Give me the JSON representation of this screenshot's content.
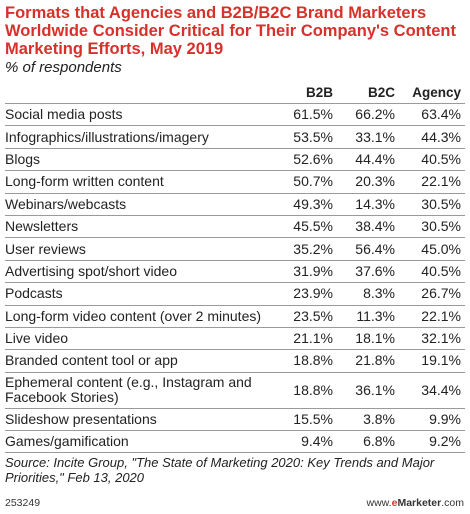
{
  "header": {
    "title": "Formats that Agencies and B2B/B2C Brand Marketers Worldwide Consider Critical for Their Company's Content Marketing Efforts, May 2019",
    "subtitle": "% of respondents"
  },
  "chart_data": {
    "type": "table",
    "title": "Formats that Agencies and B2B/B2C Brand Marketers Worldwide Consider Critical for Their Company's Content Marketing Efforts, May 2019",
    "subtitle": "% of respondents",
    "columns": [
      "B2B",
      "B2C",
      "Agency"
    ],
    "rows": [
      {
        "label": "Social media posts",
        "values": [
          "61.5%",
          "66.2%",
          "63.4%"
        ]
      },
      {
        "label": "Infographics/illustrations/imagery",
        "values": [
          "53.5%",
          "33.1%",
          "44.3%"
        ]
      },
      {
        "label": "Blogs",
        "values": [
          "52.6%",
          "44.4%",
          "40.5%"
        ]
      },
      {
        "label": "Long-form written content",
        "values": [
          "50.7%",
          "20.3%",
          "22.1%"
        ]
      },
      {
        "label": "Webinars/webcasts",
        "values": [
          "49.3%",
          "14.3%",
          "30.5%"
        ]
      },
      {
        "label": "Newsletters",
        "values": [
          "45.5%",
          "38.4%",
          "30.5%"
        ]
      },
      {
        "label": "User reviews",
        "values": [
          "35.2%",
          "56.4%",
          "45.0%"
        ]
      },
      {
        "label": "Advertising spot/short video",
        "values": [
          "31.9%",
          "37.6%",
          "40.5%"
        ]
      },
      {
        "label": "Podcasts",
        "values": [
          "23.9%",
          "8.3%",
          "26.7%"
        ]
      },
      {
        "label": "Long-form video content (over 2 minutes)",
        "values": [
          "23.5%",
          "11.3%",
          "22.1%"
        ]
      },
      {
        "label": "Live video",
        "values": [
          "21.1%",
          "18.1%",
          "32.1%"
        ]
      },
      {
        "label": "Branded content tool or app",
        "values": [
          "18.8%",
          "21.8%",
          "19.1%"
        ]
      },
      {
        "label": "Ephemeral content (e.g., Instagram and Facebook Stories)",
        "values": [
          "18.8%",
          "36.1%",
          "34.4%"
        ]
      },
      {
        "label": "Slideshow presentations",
        "values": [
          "15.5%",
          "3.8%",
          "9.9%"
        ]
      },
      {
        "label": "Games/gamification",
        "values": [
          "9.4%",
          "6.8%",
          "9.2%"
        ]
      }
    ]
  },
  "footer": {
    "source": "Source: Incite Group, \"The State of Marketing 2020: Key Trends and Major Priorities,\" Feb 13, 2020",
    "chart_id": "253249",
    "brand": "www.eMarketer.com",
    "brand_prefix": "www.",
    "brand_e": "e",
    "brand_rest": "Marketer",
    "brand_suffix": ".com",
    "brand_color": "#d6312b"
  }
}
